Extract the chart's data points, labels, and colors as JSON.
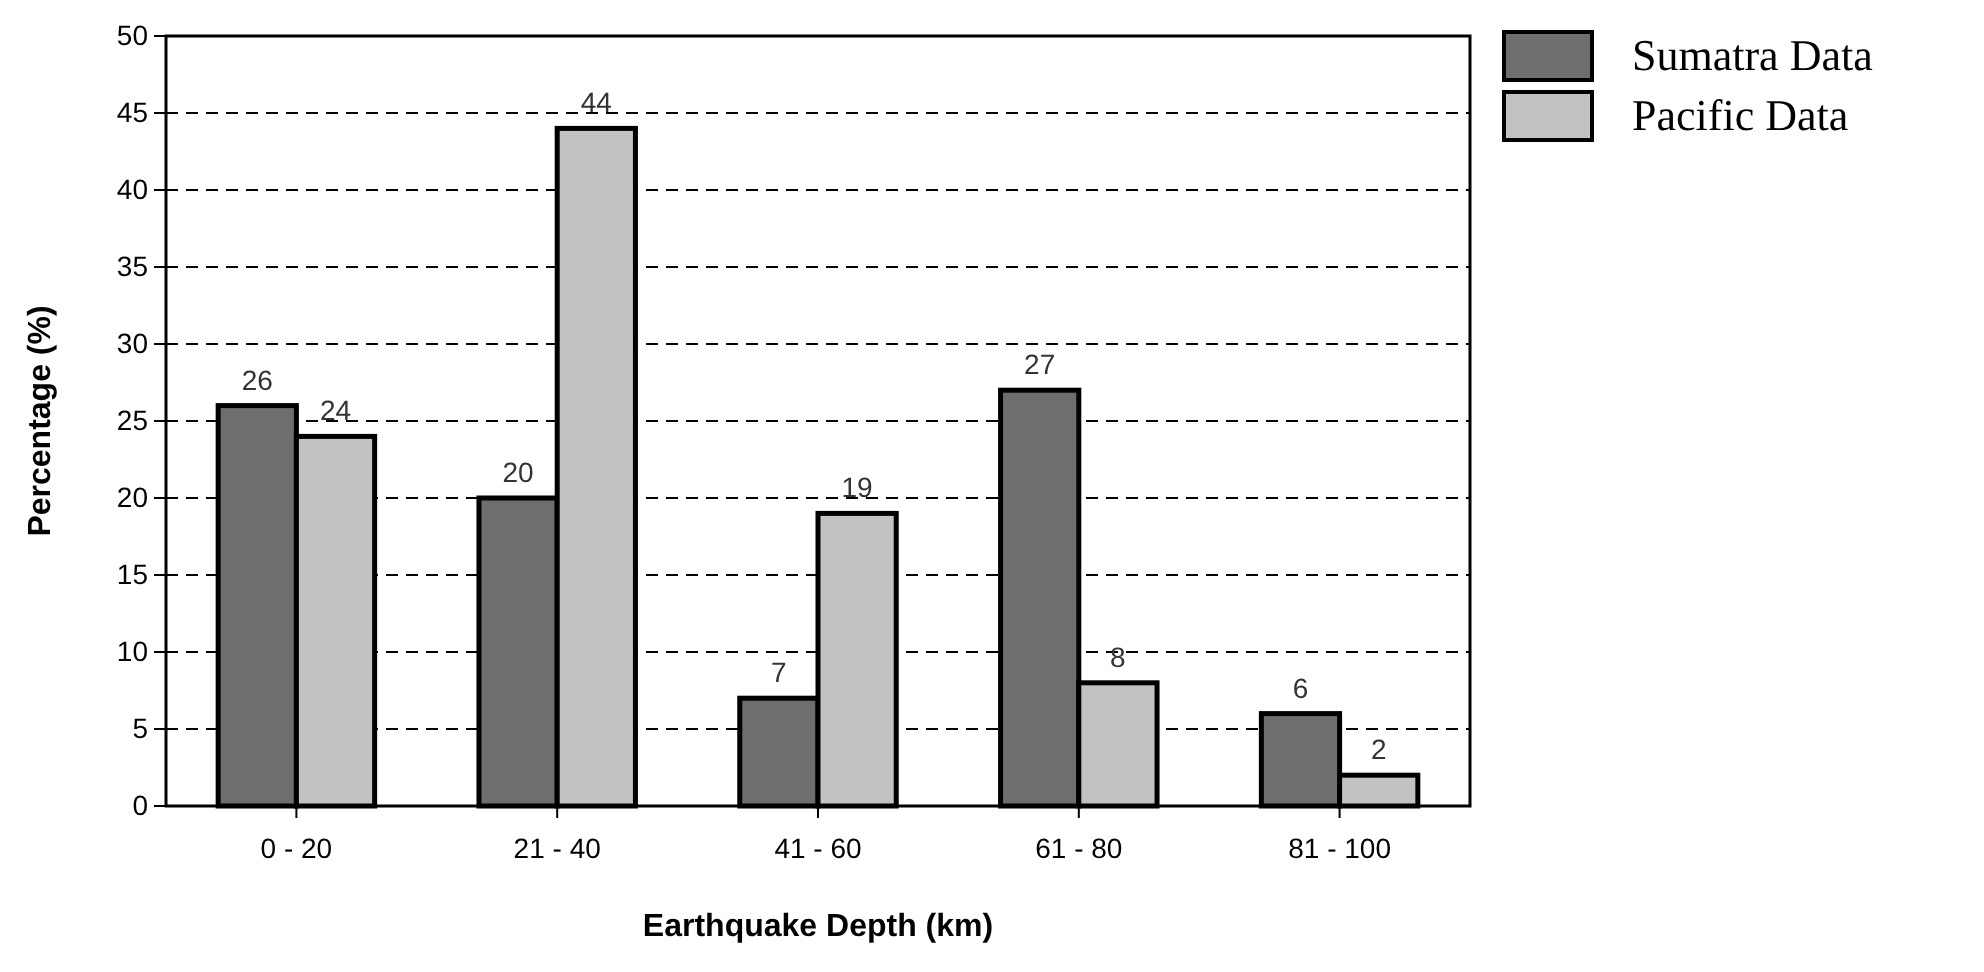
{
  "chart_data": {
    "type": "bar",
    "xlabel": "Earthquake Depth (km)",
    "ylabel": "Percentage (%)",
    "categories": [
      "0 - 20",
      "21 - 40",
      "41 - 60",
      "61 - 80",
      "81 - 100"
    ],
    "series": [
      {
        "name": "Sumatra Data",
        "color": "#6e6e6e",
        "values": [
          26,
          20,
          7,
          27,
          6
        ]
      },
      {
        "name": "Pacific Data",
        "color": "#c2c2c2",
        "values": [
          24,
          44,
          19,
          8,
          2
        ]
      }
    ],
    "ylim": [
      0,
      50
    ],
    "yticks": [
      0,
      5,
      10,
      15,
      20,
      25,
      30,
      35,
      40,
      45,
      50
    ],
    "grid": "y",
    "legend": "top right",
    "data_labels": true
  }
}
